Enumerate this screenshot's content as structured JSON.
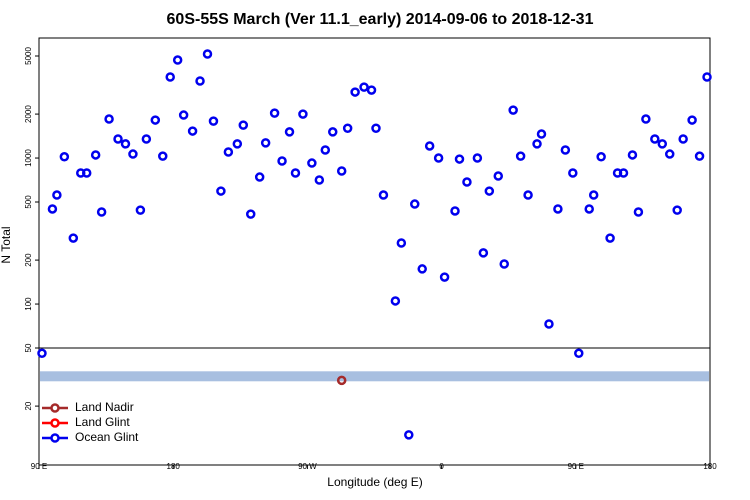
{
  "chart_data": {
    "type": "scatter",
    "title": "60S-55S March (Ver 11.1_early)   2014-09-06 to 2018-12-31",
    "x_label": "Longitude (deg E)",
    "y_label": "N Total",
    "ylog": true,
    "xlim": [
      90,
      540
    ],
    "ylim": [
      7.9,
      6640
    ],
    "xticks": [
      {
        "value": 90,
        "label": "90 E"
      },
      180,
      {
        "value": 270,
        "label": "90 W"
      },
      {
        "value": 360,
        "label": "0"
      },
      {
        "value": 450,
        "label": "90 E"
      },
      {
        "value": 540,
        "label": "180"
      }
    ],
    "yticks": [
      20,
      50,
      100,
      200,
      500,
      1000,
      2000,
      5000
    ],
    "reference_line": 50,
    "reference_band": {
      "value": 32,
      "color": "#a8bfe0"
    },
    "legend": "bottom-left",
    "series": [
      {
        "name": "Land Nadir",
        "color": "#a52a2a",
        "x": [
          293
        ],
        "values": [
          30
        ]
      },
      {
        "name": "Land Glint",
        "color": "#ff0000",
        "x": [],
        "values": []
      },
      {
        "name": "Ocean Glint",
        "color": "#0000ee",
        "x": [
          92,
          99,
          102,
          107,
          113,
          118,
          122,
          128,
          132,
          137,
          143,
          148,
          153,
          158,
          162,
          168,
          173,
          178,
          183,
          187,
          193,
          198,
          203,
          207,
          212,
          217,
          223,
          227,
          232,
          238,
          242,
          248,
          253,
          258,
          262,
          267,
          273,
          278,
          282,
          287,
          293,
          297,
          302,
          308,
          313,
          316,
          321,
          329,
          333,
          338,
          342,
          347,
          352,
          358,
          362,
          369,
          372,
          377,
          384,
          388,
          392,
          398,
          402,
          408,
          413,
          418,
          424,
          427,
          432,
          438,
          443,
          448,
          452,
          459,
          462,
          467,
          473,
          478,
          482,
          488,
          492,
          497,
          503,
          508,
          513,
          518,
          522,
          528,
          533,
          538
        ],
        "values": [
          46,
          448,
          558,
          1020,
          283,
          790,
          790,
          1050,
          427,
          1850,
          1350,
          1250,
          1065,
          440,
          1350,
          1820,
          1030,
          3590,
          4690,
          1970,
          1530,
          3370,
          5160,
          1790,
          594,
          1100,
          1250,
          1680,
          413,
          741,
          1270,
          2030,
          954,
          1510,
          790,
          2000,
          924,
          707,
          1135,
          1510,
          815,
          1600,
          2830,
          3060,
          2920,
          1600,
          558,
          105,
          262,
          12.7,
          484,
          174,
          1210,
          1000,
          153,
          434,
          984,
          685,
          1000,
          224,
          594,
          753,
          188,
          2130,
          1030,
          558,
          1250,
          1460,
          73,
          448,
          1135,
          790,
          46,
          448,
          558,
          1020,
          283,
          790,
          790,
          1050,
          427,
          1850,
          1350,
          1250,
          1065,
          440,
          1350,
          1820,
          1030,
          3590
        ]
      }
    ]
  }
}
